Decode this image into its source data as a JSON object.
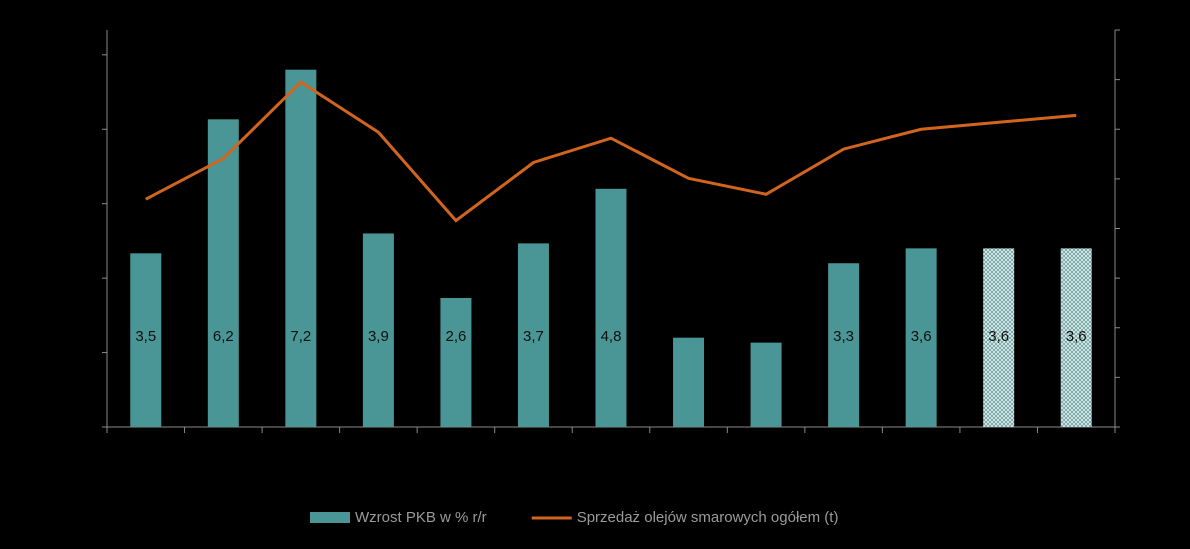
{
  "chart_data": {
    "type": "bar_line",
    "categories": [
      null,
      null,
      null,
      null,
      null,
      null,
      null,
      null,
      null,
      null,
      null,
      null,
      null
    ],
    "series": [
      {
        "name": "Wzrost PKB w % r/r",
        "type": "bar",
        "color": "#4a9595",
        "values": [
          3.5,
          6.2,
          7.2,
          3.9,
          2.6,
          3.7,
          4.8,
          1.8,
          1.7,
          3.3,
          3.6,
          3.6,
          3.6
        ],
        "value_labels": [
          "3,5",
          "6,2",
          "7,2",
          "3,9",
          "2,6",
          "3,7",
          "4,8",
          null,
          null,
          "3,3",
          "3,6",
          "3,6",
          "3,6"
        ],
        "hatched": [
          false,
          false,
          false,
          false,
          false,
          false,
          false,
          false,
          false,
          false,
          false,
          true,
          true
        ]
      },
      {
        "name": "Sprzedaż olejów smarowych ogółem (t)",
        "type": "line",
        "color": "#d2651e",
        "axis": "y2",
        "values": [
          4.59,
          5.41,
          6.95,
          5.94,
          4.16,
          5.33,
          5.82,
          5.01,
          4.69,
          5.6,
          6.0,
          6.14,
          6.28
        ]
      }
    ],
    "ylim": [
      0,
      8
    ],
    "yticks": [
      0,
      1.5,
      3,
      4.5,
      6,
      7.5
    ],
    "y2lim": [
      0,
      8
    ],
    "y2ticks": [
      0,
      1,
      2,
      3,
      4,
      5,
      6,
      7,
      8
    ]
  }
}
